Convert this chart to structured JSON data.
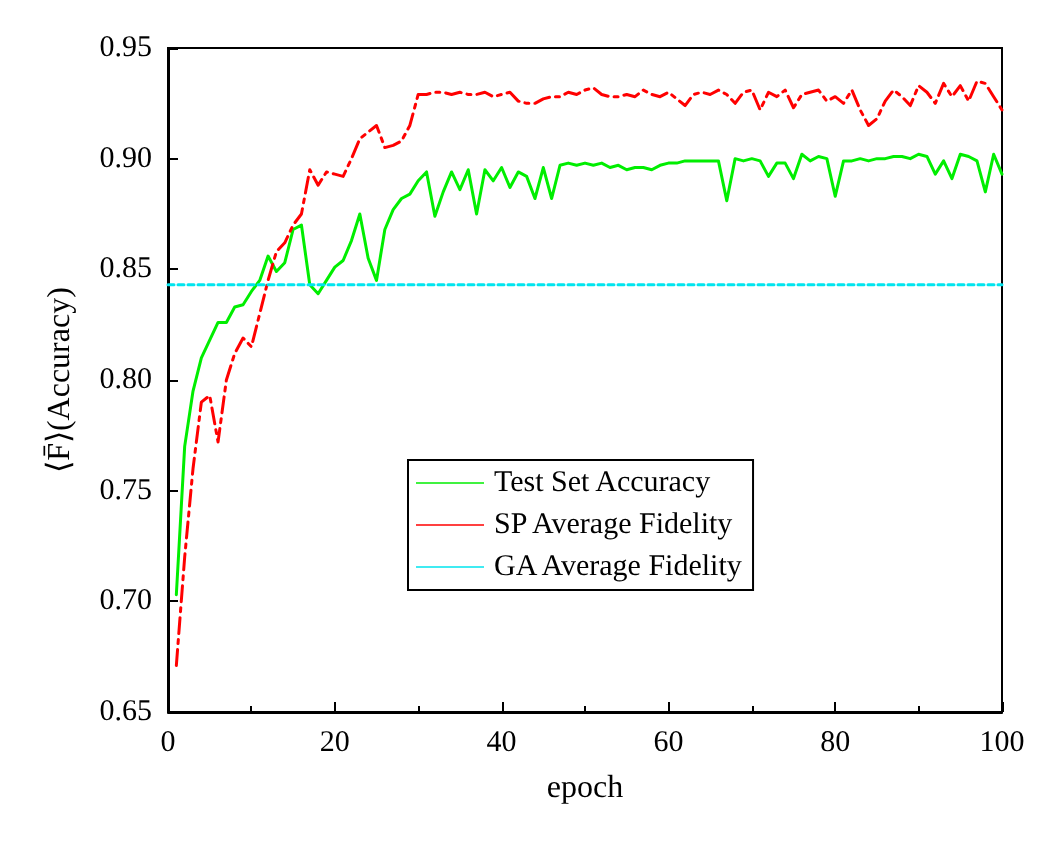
{
  "chart_data": {
    "type": "line",
    "xlabel": "epoch",
    "ylabel": "⟨F̄⟩(Accuracy)",
    "x": [
      1,
      2,
      3,
      4,
      5,
      6,
      7,
      8,
      9,
      10,
      11,
      12,
      13,
      14,
      15,
      16,
      17,
      18,
      19,
      20,
      21,
      22,
      23,
      24,
      25,
      26,
      27,
      28,
      29,
      30,
      31,
      32,
      33,
      34,
      35,
      36,
      37,
      38,
      39,
      40,
      41,
      42,
      43,
      44,
      45,
      46,
      47,
      48,
      49,
      50,
      51,
      52,
      53,
      54,
      55,
      56,
      57,
      58,
      59,
      60,
      61,
      62,
      63,
      64,
      65,
      66,
      67,
      68,
      69,
      70,
      71,
      72,
      73,
      74,
      75,
      76,
      77,
      78,
      79,
      80,
      81,
      82,
      83,
      84,
      85,
      86,
      87,
      88,
      89,
      90,
      91,
      92,
      93,
      94,
      95,
      96,
      97,
      98,
      99,
      100
    ],
    "series": [
      {
        "name": "Test Set Accuracy",
        "color": "#00ee00",
        "line_style": "solid",
        "values": [
          0.703,
          0.77,
          0.795,
          0.81,
          0.818,
          0.826,
          0.826,
          0.833,
          0.834,
          0.84,
          0.845,
          0.856,
          0.849,
          0.853,
          0.868,
          0.87,
          0.843,
          0.839,
          0.845,
          0.851,
          0.854,
          0.863,
          0.875,
          0.855,
          0.845,
          0.868,
          0.877,
          0.882,
          0.884,
          0.89,
          0.894,
          0.874,
          0.885,
          0.894,
          0.886,
          0.895,
          0.875,
          0.895,
          0.89,
          0.896,
          0.887,
          0.894,
          0.892,
          0.882,
          0.896,
          0.882,
          0.897,
          0.898,
          0.897,
          0.898,
          0.897,
          0.898,
          0.896,
          0.897,
          0.895,
          0.896,
          0.896,
          0.895,
          0.897,
          0.898,
          0.898,
          0.899,
          0.899,
          0.899,
          0.899,
          0.899,
          0.881,
          0.9,
          0.899,
          0.9,
          0.899,
          0.892,
          0.898,
          0.898,
          0.891,
          0.902,
          0.899,
          0.901,
          0.9,
          0.883,
          0.899,
          0.899,
          0.9,
          0.899,
          0.9,
          0.9,
          0.901,
          0.901,
          0.9,
          0.902,
          0.901,
          0.893,
          0.899,
          0.891,
          0.902,
          0.901,
          0.899,
          0.885,
          0.902,
          0.893
        ]
      },
      {
        "name": "SP Average Fidelity",
        "color": "#ff0000",
        "line_style": "dashed",
        "values": [
          0.671,
          0.72,
          0.76,
          0.79,
          0.793,
          0.772,
          0.8,
          0.812,
          0.819,
          0.815,
          0.83,
          0.845,
          0.858,
          0.862,
          0.87,
          0.875,
          0.895,
          0.888,
          0.894,
          0.893,
          0.892,
          0.9,
          0.909,
          0.912,
          0.915,
          0.905,
          0.906,
          0.908,
          0.915,
          0.929,
          0.929,
          0.93,
          0.93,
          0.929,
          0.93,
          0.929,
          0.929,
          0.93,
          0.928,
          0.929,
          0.93,
          0.926,
          0.925,
          0.925,
          0.927,
          0.928,
          0.928,
          0.93,
          0.929,
          0.931,
          0.932,
          0.929,
          0.928,
          0.928,
          0.929,
          0.928,
          0.931,
          0.929,
          0.928,
          0.93,
          0.927,
          0.924,
          0.929,
          0.93,
          0.929,
          0.931,
          0.929,
          0.925,
          0.93,
          0.931,
          0.922,
          0.93,
          0.928,
          0.931,
          0.923,
          0.929,
          0.93,
          0.931,
          0.926,
          0.928,
          0.925,
          0.931,
          0.922,
          0.915,
          0.918,
          0.926,
          0.931,
          0.928,
          0.924,
          0.933,
          0.93,
          0.925,
          0.934,
          0.928,
          0.933,
          0.926,
          0.935,
          0.934,
          0.928,
          0.922
        ]
      },
      {
        "name": "GA Average Fidelity",
        "color": "#00e5ee",
        "line_style": "dotted",
        "x": [
          0,
          100
        ],
        "values": [
          0.843,
          0.843
        ]
      }
    ],
    "xlim": [
      0,
      100
    ],
    "xticks": [
      0,
      20,
      40,
      60,
      80,
      100
    ],
    "ylim": [
      0.65,
      0.95
    ],
    "yticks": [
      {
        "value": 0.65,
        "label": "0.65"
      },
      {
        "value": 0.7,
        "label": "0.70"
      },
      {
        "value": 0.75,
        "label": "0.75"
      },
      {
        "value": 0.8,
        "label": "0.80"
      },
      {
        "value": 0.85,
        "label": "0.85"
      },
      {
        "value": 0.9,
        "label": "0.90"
      },
      {
        "value": 0.95,
        "label": "0.95"
      }
    ],
    "grid": false,
    "legend": "center",
    "marker": "none"
  }
}
